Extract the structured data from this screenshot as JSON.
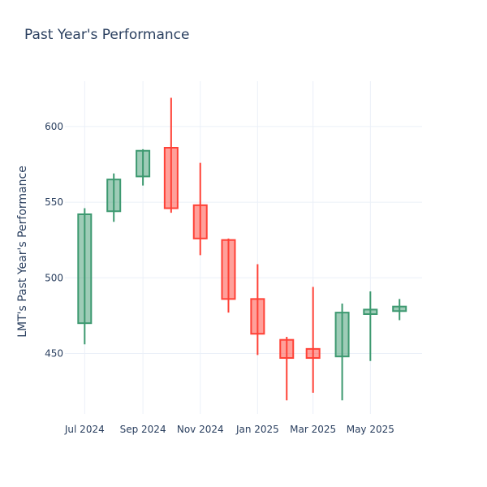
{
  "chart_data": {
    "type": "candlestick",
    "title": "Past Year's Performance",
    "ylabel": "LMT's Past Year's Performance",
    "xlabel": "",
    "ylim": [
      410,
      630
    ],
    "y_ticks": [
      450,
      500,
      550,
      600
    ],
    "x_ticks": [
      {
        "date": "2024-07-01",
        "label": "Jul 2024"
      },
      {
        "date": "2024-09-01",
        "label": "Sep 2024"
      },
      {
        "date": "2024-11-01",
        "label": "Nov 2024"
      },
      {
        "date": "2025-01-01",
        "label": "Jan 2025"
      },
      {
        "date": "2025-03-01",
        "label": "Mar 2025"
      },
      {
        "date": "2025-05-01",
        "label": "May 2025"
      }
    ],
    "x_range": [
      "2024-06-10",
      "2025-06-25"
    ],
    "grid": true,
    "colors": {
      "increasing": "#3d9970",
      "decreasing": "#ff4136",
      "increasing_fill": "rgba(61,153,112,0.5)",
      "decreasing_fill": "rgba(255,65,54,0.5)",
      "grid": "#ebf0f8",
      "text": "#2a3f5f"
    },
    "candles": [
      {
        "date": "2024-07-01",
        "open": 470,
        "high": 546,
        "low": 456,
        "close": 542
      },
      {
        "date": "2024-08-01",
        "open": 544,
        "high": 569,
        "low": 537,
        "close": 565
      },
      {
        "date": "2024-09-01",
        "open": 567,
        "high": 585,
        "low": 561,
        "close": 584
      },
      {
        "date": "2024-10-01",
        "open": 586,
        "high": 619,
        "low": 543,
        "close": 546
      },
      {
        "date": "2024-11-01",
        "open": 548,
        "high": 576,
        "low": 515,
        "close": 526
      },
      {
        "date": "2024-12-01",
        "open": 525,
        "high": 526,
        "low": 477,
        "close": 486
      },
      {
        "date": "2025-01-01",
        "open": 486,
        "high": 509,
        "low": 449,
        "close": 463
      },
      {
        "date": "2025-02-01",
        "open": 459,
        "high": 461,
        "low": 419,
        "close": 447
      },
      {
        "date": "2025-03-01",
        "open": 453,
        "high": 494,
        "low": 424,
        "close": 447
      },
      {
        "date": "2025-04-01",
        "open": 448,
        "high": 483,
        "low": 419,
        "close": 477
      },
      {
        "date": "2025-05-01",
        "open": 476,
        "high": 491,
        "low": 445,
        "close": 479
      },
      {
        "date": "2025-06-01",
        "open": 478,
        "high": 486,
        "low": 472,
        "close": 481
      }
    ]
  }
}
